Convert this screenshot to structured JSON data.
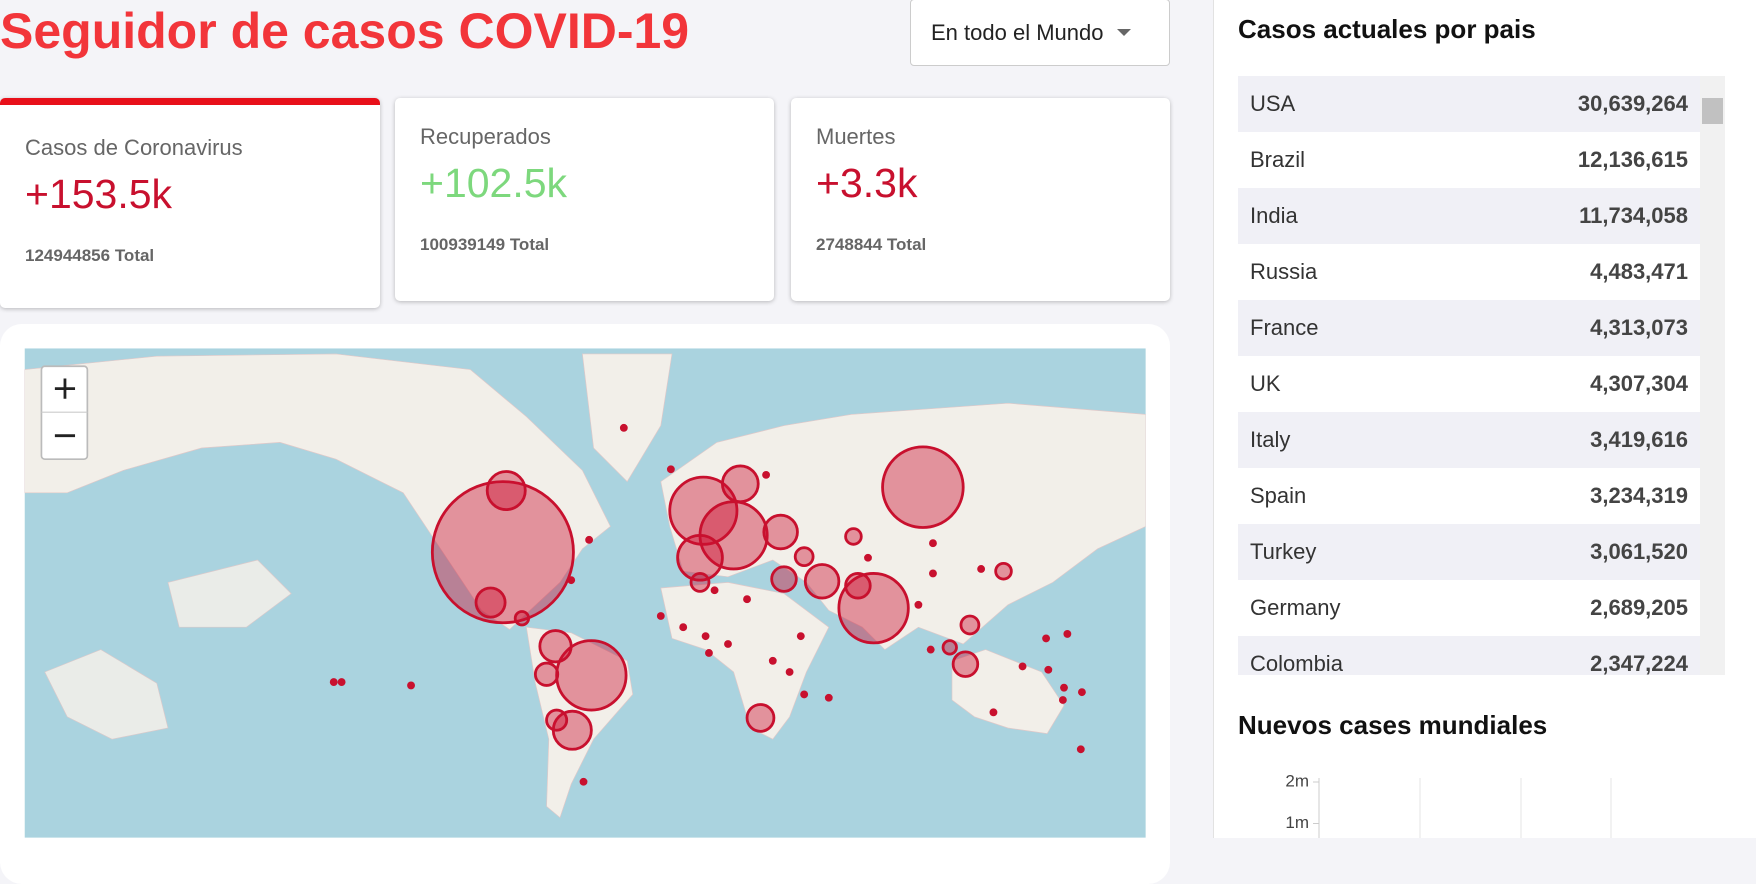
{
  "header": {
    "title": "Seguidor de casos COVID-19",
    "dropdown": "En todo el Mundo"
  },
  "cards": [
    {
      "label": "Casos de Coronavirus",
      "delta": "+153.5k",
      "total": "124944856 Total"
    },
    {
      "label": "Recuperados",
      "delta": "+102.5k",
      "total": "100939149 Total"
    },
    {
      "label": "Muertes",
      "delta": "+3.3k",
      "total": "2748844 Total"
    }
  ],
  "country_table": {
    "title": "Casos actuales por pais",
    "rows": [
      [
        "USA",
        "30,639,264"
      ],
      [
        "Brazil",
        "12,136,615"
      ],
      [
        "India",
        "11,734,058"
      ],
      [
        "Russia",
        "4,483,471"
      ],
      [
        "France",
        "4,313,073"
      ],
      [
        "UK",
        "4,307,304"
      ],
      [
        "Italy",
        "3,419,616"
      ],
      [
        "Spain",
        "3,234,319"
      ],
      [
        "Turkey",
        "3,061,520"
      ],
      [
        "Germany",
        "2,689,205"
      ],
      [
        "Colombia",
        "2,347,224"
      ]
    ]
  },
  "chart_data": {
    "type": "line",
    "title": "Nuevos cases mundiales",
    "ylim": [
      0,
      2000000
    ],
    "yticks": [
      {
        "value": 1000000,
        "label": "1m"
      },
      {
        "value": 2000000,
        "label": "2m"
      }
    ]
  }
}
